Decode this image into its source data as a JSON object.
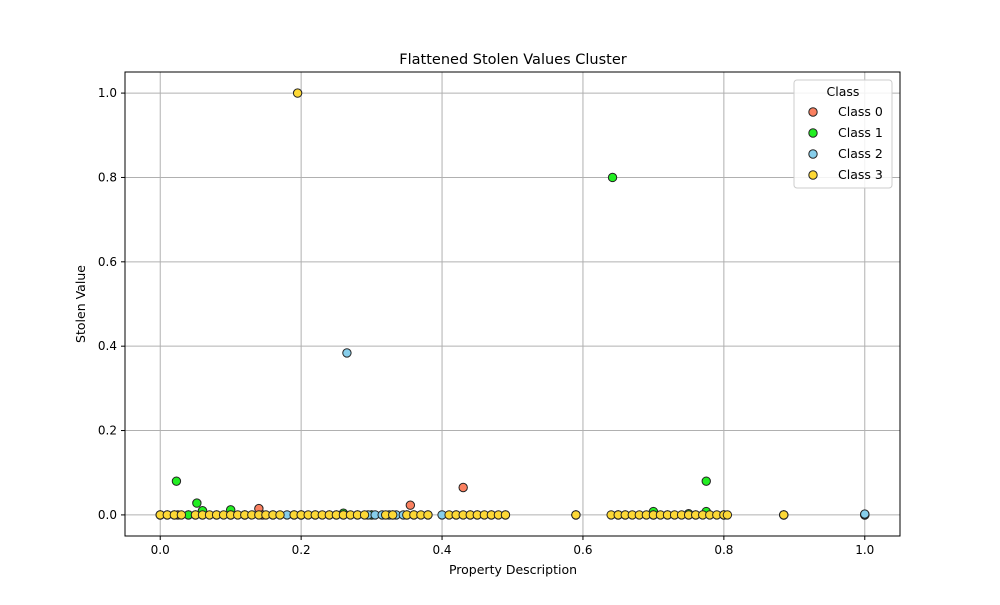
{
  "chart_data": {
    "type": "scatter",
    "title": "Flattened Stolen Values Cluster",
    "xlabel": "Property Description",
    "ylabel": "Stolen Value",
    "xlim": [
      -0.05,
      1.05
    ],
    "ylim": [
      -0.05,
      1.05
    ],
    "xticks": [
      "0.0",
      "0.2",
      "0.4",
      "0.6",
      "0.8",
      "1.0"
    ],
    "yticks": [
      "0.0",
      "0.2",
      "0.4",
      "0.6",
      "0.8",
      "1.0"
    ],
    "grid": true,
    "legend": {
      "title": "Class",
      "placement": "top-right"
    },
    "series": [
      {
        "name": "Class 0",
        "color": "#fa8060",
        "points": [
          [
            0.0,
            0
          ],
          [
            0.01,
            0
          ],
          [
            0.025,
            0
          ],
          [
            0.04,
            0
          ],
          [
            0.06,
            0
          ],
          [
            0.08,
            0
          ],
          [
            0.1,
            0
          ],
          [
            0.12,
            0
          ],
          [
            0.14,
            0.015
          ],
          [
            0.145,
            0
          ],
          [
            0.16,
            0
          ],
          [
            0.2,
            0
          ],
          [
            0.22,
            0
          ],
          [
            0.25,
            0
          ],
          [
            0.28,
            0
          ],
          [
            0.3,
            0
          ],
          [
            0.33,
            0
          ],
          [
            0.355,
            0.023
          ],
          [
            0.36,
            0
          ],
          [
            0.38,
            0
          ],
          [
            0.43,
            0.065
          ],
          [
            0.44,
            0
          ],
          [
            0.47,
            0
          ],
          [
            0.49,
            0
          ],
          [
            0.59,
            0
          ],
          [
            0.65,
            0
          ],
          [
            0.7,
            0
          ],
          [
            0.75,
            0
          ],
          [
            0.8,
            0
          ],
          [
            0.885,
            0
          ],
          [
            1.0,
            0
          ]
        ]
      },
      {
        "name": "Class 1",
        "color": "#22ee22",
        "points": [
          [
            0.023,
            0.08
          ],
          [
            0.052,
            0.028
          ],
          [
            0.06,
            0.01
          ],
          [
            0.04,
            0
          ],
          [
            0.1,
            0.012
          ],
          [
            0.12,
            0
          ],
          [
            0.19,
            0
          ],
          [
            0.24,
            0
          ],
          [
            0.26,
            0.004
          ],
          [
            0.3,
            0
          ],
          [
            0.35,
            0
          ],
          [
            0.42,
            0
          ],
          [
            0.642,
            0.8
          ],
          [
            0.65,
            0
          ],
          [
            0.7,
            0.008
          ],
          [
            0.72,
            0
          ],
          [
            0.75,
            0.003
          ],
          [
            0.775,
            0.08
          ],
          [
            0.775,
            0.008
          ],
          [
            0.8,
            0
          ],
          [
            0.885,
            0
          ],
          [
            1.0,
            0
          ]
        ]
      },
      {
        "name": "Class 2",
        "color": "#87ceeb",
        "points": [
          [
            0.265,
            0.384
          ],
          [
            0.0,
            0
          ],
          [
            0.02,
            0
          ],
          [
            0.05,
            0
          ],
          [
            0.1,
            0
          ],
          [
            0.18,
            0
          ],
          [
            0.2,
            0
          ],
          [
            0.26,
            0
          ],
          [
            0.295,
            0
          ],
          [
            0.305,
            0
          ],
          [
            0.315,
            0
          ],
          [
            0.325,
            0
          ],
          [
            0.335,
            0
          ],
          [
            0.345,
            0
          ],
          [
            0.4,
            0
          ],
          [
            0.45,
            0
          ],
          [
            0.59,
            0
          ],
          [
            0.66,
            0
          ],
          [
            0.7,
            0
          ],
          [
            0.76,
            0
          ],
          [
            0.885,
            0
          ],
          [
            1.0,
            0
          ],
          [
            1.0,
            0.002
          ]
        ]
      },
      {
        "name": "Class 3",
        "color": "#fdd835",
        "points": [
          [
            0.195,
            1.0
          ],
          [
            0.0,
            0
          ],
          [
            0.01,
            0
          ],
          [
            0.02,
            0
          ],
          [
            0.03,
            0
          ],
          [
            0.05,
            0
          ],
          [
            0.06,
            0
          ],
          [
            0.07,
            0
          ],
          [
            0.08,
            0
          ],
          [
            0.09,
            0
          ],
          [
            0.1,
            0
          ],
          [
            0.11,
            0
          ],
          [
            0.12,
            0
          ],
          [
            0.13,
            0
          ],
          [
            0.14,
            0
          ],
          [
            0.15,
            0
          ],
          [
            0.16,
            0
          ],
          [
            0.17,
            0
          ],
          [
            0.19,
            0
          ],
          [
            0.2,
            0
          ],
          [
            0.21,
            0
          ],
          [
            0.22,
            0
          ],
          [
            0.23,
            0
          ],
          [
            0.24,
            0
          ],
          [
            0.25,
            0
          ],
          [
            0.26,
            0
          ],
          [
            0.27,
            0
          ],
          [
            0.28,
            0
          ],
          [
            0.29,
            0
          ],
          [
            0.32,
            0
          ],
          [
            0.33,
            0
          ],
          [
            0.35,
            0
          ],
          [
            0.36,
            0
          ],
          [
            0.37,
            0
          ],
          [
            0.38,
            0
          ],
          [
            0.41,
            0
          ],
          [
            0.42,
            0
          ],
          [
            0.43,
            0
          ],
          [
            0.44,
            0
          ],
          [
            0.45,
            0
          ],
          [
            0.46,
            0
          ],
          [
            0.47,
            0
          ],
          [
            0.48,
            0
          ],
          [
            0.49,
            0
          ],
          [
            0.59,
            0
          ],
          [
            0.64,
            0
          ],
          [
            0.65,
            0
          ],
          [
            0.66,
            0
          ],
          [
            0.67,
            0
          ],
          [
            0.68,
            0
          ],
          [
            0.69,
            0
          ],
          [
            0.7,
            0
          ],
          [
            0.71,
            0
          ],
          [
            0.72,
            0
          ],
          [
            0.73,
            0
          ],
          [
            0.74,
            0
          ],
          [
            0.75,
            0
          ],
          [
            0.76,
            0
          ],
          [
            0.77,
            0
          ],
          [
            0.78,
            0
          ],
          [
            0.79,
            0
          ],
          [
            0.8,
            0
          ],
          [
            0.805,
            0
          ],
          [
            0.885,
            0
          ]
        ]
      }
    ]
  }
}
